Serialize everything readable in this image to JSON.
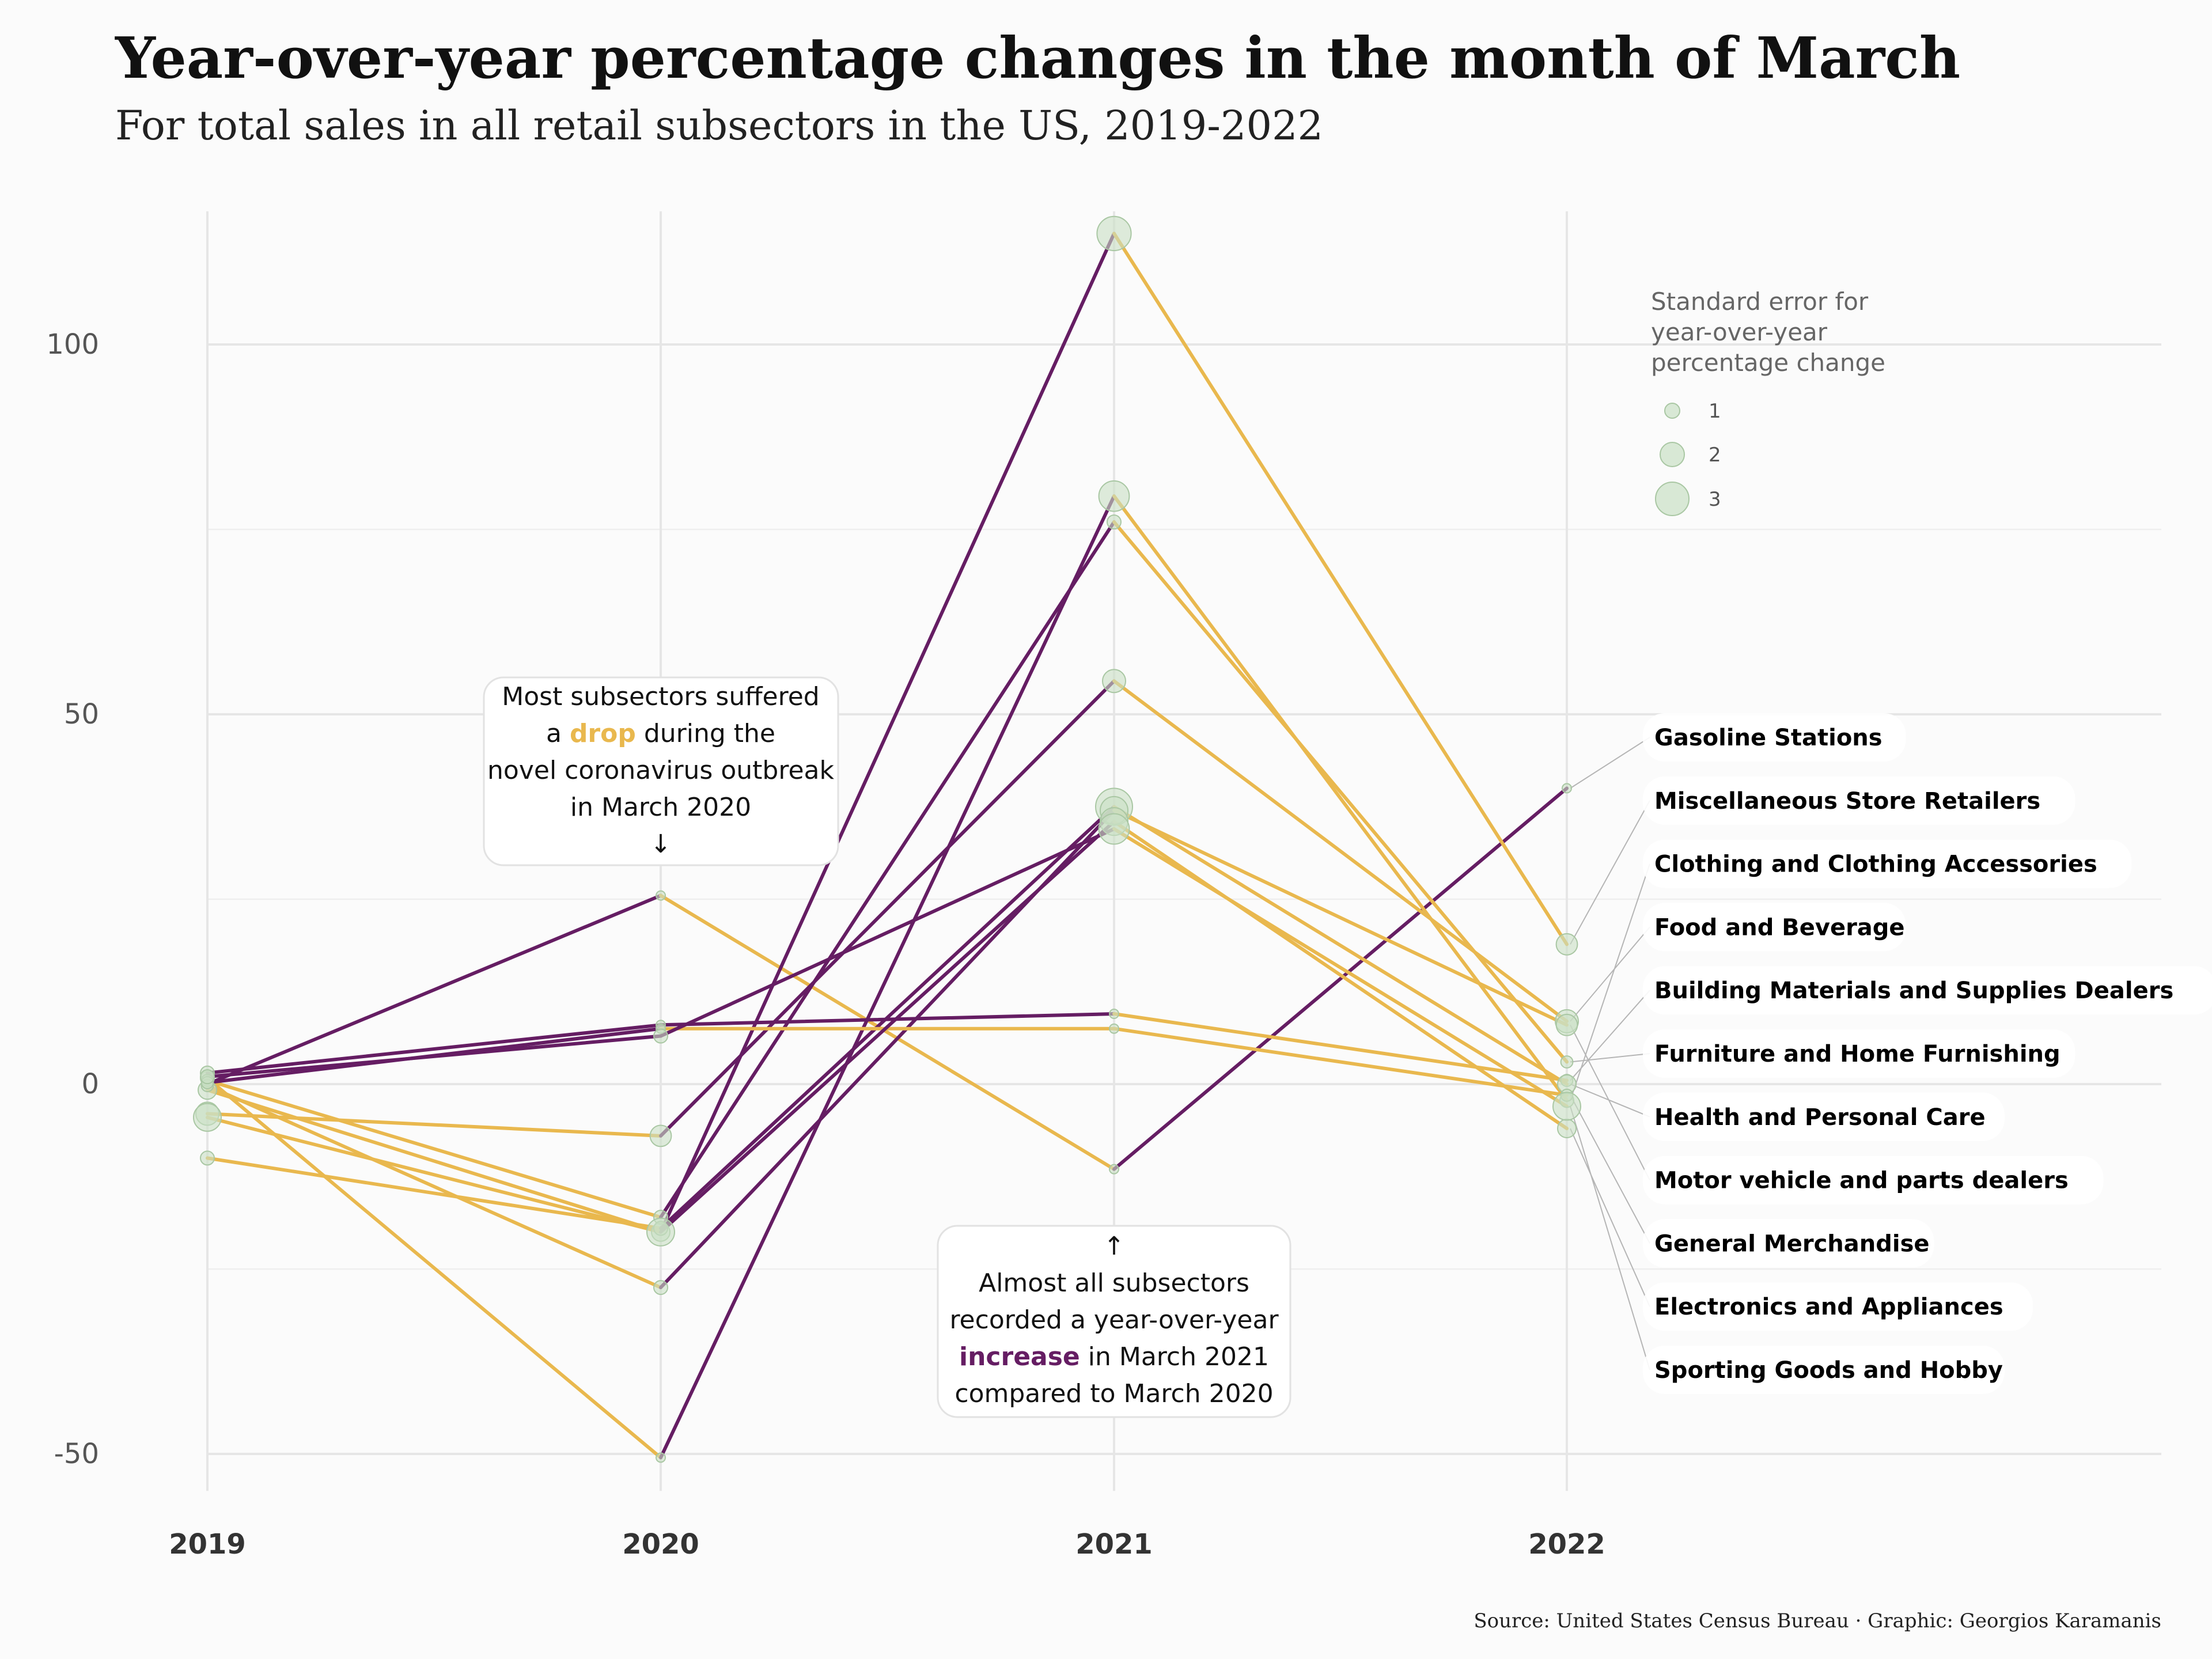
{
  "title": "Year-over-year percentage changes in the month of March",
  "subtitle": "For total sales in all retail subsectors in the US, 2019-2022",
  "caption": "Source: United States Census Bureau · Graphic: Georgios Karamanis",
  "colors": {
    "increase": "#651D63",
    "decrease": "#E9B84E",
    "se_point": "#C9E0C4",
    "background": "#FBFBFB"
  },
  "legend": {
    "title_lines": [
      "Standard error for",
      "year-over-year",
      "percentage change"
    ],
    "items": [
      {
        "label": "1",
        "value": 1
      },
      {
        "label": "2",
        "value": 2
      },
      {
        "label": "3",
        "value": 3
      }
    ]
  },
  "annotations": {
    "drop": {
      "line1": "Most subsectors suffered",
      "line2_before": "a ",
      "line2_highlight": "drop",
      "line2_after": " during the",
      "line3": "novel coronavirus outbreak",
      "line4": "in March 2020",
      "arrow": "↓"
    },
    "increase": {
      "arrow": "↑",
      "line1": "Almost all subsectors",
      "line2": "recorded a year-over-year",
      "line3_highlight": "increase",
      "line3_after": " in March 2021",
      "line4": "compared to March 2020"
    }
  },
  "subsector_labels": [
    "Gasoline Stations",
    "Miscellaneous Store Retailers",
    "Clothing and Clothing Accessories",
    "Food and Beverage",
    "Building Materials and Supplies Dealers",
    "Furniture and Home Furnishing",
    "Health and Personal Care",
    "Motor vehicle and parts dealers",
    "General Merchandise",
    "Electronics and Appliances",
    "Sporting Goods and Hobby"
  ],
  "chart_data": {
    "type": "line",
    "x": [
      "2019",
      "2020",
      "2021",
      "2022"
    ],
    "ylim": [
      -55,
      118
    ],
    "yticks": [
      -50,
      0,
      50,
      100
    ],
    "ytick_labels": [
      "-50",
      "0",
      "50",
      "100"
    ],
    "grid": true,
    "legend_position": "top-right",
    "series": [
      {
        "name": "Gasoline Stations",
        "values": [
          0,
          25.5,
          -11.5,
          40
        ],
        "se": [
          0.5,
          0.5,
          0.5,
          0.5
        ]
      },
      {
        "name": "Miscellaneous Store Retailers",
        "values": [
          -0.8,
          -20,
          115,
          18.9
        ],
        "se": [
          1.5,
          1.5,
          3.2,
          1.8
        ]
      },
      {
        "name": "Clothing and Clothing Accessories",
        "values": [
          0.8,
          -50.5,
          79.5,
          -2.2
        ],
        "se": [
          1,
          0.5,
          2.8,
          1
        ]
      },
      {
        "name": "Food and Beverage",
        "values": [
          -4,
          -7,
          54.5,
          8.5
        ],
        "se": [
          2,
          1.8,
          2,
          2
        ]
      },
      {
        "name": "Building Materials and Supplies Dealers",
        "values": [
          1.5,
          8,
          9.5,
          0.5
        ],
        "se": [
          1,
          0.5,
          0.5,
          0.8
        ]
      },
      {
        "name": "Furniture and Home Furnishing",
        "values": [
          0.5,
          -18,
          76,
          3
        ],
        "se": [
          0.8,
          1,
          1,
          0.8
        ]
      },
      {
        "name": "Health and Personal Care",
        "values": [
          -10,
          -19.5,
          37.5,
          0
        ],
        "se": [
          1,
          1,
          3.5,
          1.5
        ]
      },
      {
        "name": "Motor vehicle and parts dealers",
        "values": [
          -0.2,
          -27.5,
          37,
          8
        ],
        "se": [
          0.8,
          1,
          2.5,
          1.8
        ]
      },
      {
        "name": "General Merchandise",
        "values": [
          0.2,
          7.5,
          7.5,
          -1.5
        ],
        "se": [
          0.8,
          0.5,
          0.5,
          0.8
        ]
      },
      {
        "name": "Electronics and Appliances",
        "values": [
          -4.5,
          -20,
          35.5,
          -6
        ],
        "se": [
          2.5,
          2.5,
          2.5,
          1.5
        ]
      },
      {
        "name": "Sporting Goods and Hobby",
        "values": [
          1,
          6.5,
          34.5,
          -3
        ],
        "se": [
          1,
          1,
          2.8,
          2.5
        ]
      }
    ]
  }
}
